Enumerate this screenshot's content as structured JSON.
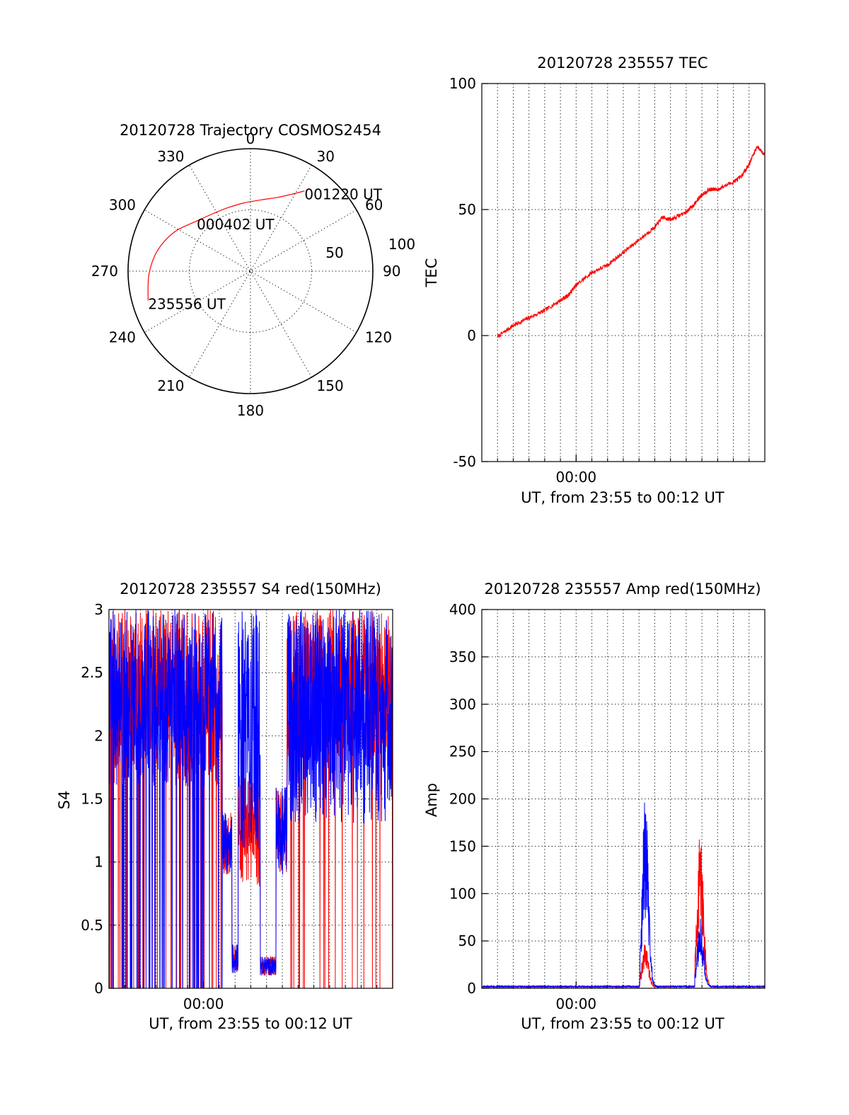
{
  "chart_data": [
    {
      "type": "polar",
      "title": "20120728 Trajectory COSMOS2454",
      "azimuth_labels": [
        "0",
        "30",
        "60",
        "90",
        "120",
        "150",
        "180",
        "210",
        "240",
        "270",
        "300",
        "330"
      ],
      "azimuth_degrees": [
        0,
        30,
        60,
        90,
        120,
        150,
        180,
        210,
        240,
        270,
        300,
        330
      ],
      "radius_labels": [
        "50",
        "100"
      ],
      "radius_values": [
        50,
        100
      ],
      "radius_max": 100,
      "series": [
        {
          "color": "#ff0000",
          "points": [
            {
              "az": 254,
              "r": 87,
              "label": "235556 UT"
            },
            {
              "az": 268,
              "r": 83
            },
            {
              "az": 282,
              "r": 78
            },
            {
              "az": 297,
              "r": 70
            },
            {
              "az": 313,
              "r": 60,
              "label": "000402 UT"
            },
            {
              "az": 327,
              "r": 56
            },
            {
              "az": 340,
              "r": 55
            },
            {
              "az": 355,
              "r": 56
            },
            {
              "az": 9,
              "r": 59
            },
            {
              "az": 20,
              "r": 64
            },
            {
              "az": 28,
              "r": 71
            },
            {
              "az": 34,
              "r": 79,
              "label": "001220 UT"
            }
          ]
        }
      ]
    },
    {
      "type": "line",
      "title": "20120728 235557 TEC",
      "xlabel": "UT, from 23:55 to 00:12 UT",
      "ylabel": "TEC",
      "xlim": [
        "23:54:00",
        "00:12:00"
      ],
      "x_ticks": [
        {
          "at": "00:00:00",
          "label": "00:00"
        }
      ],
      "ylim": [
        -50,
        100
      ],
      "y_ticks": [
        "-50",
        "0",
        "50",
        "100"
      ],
      "grid": true,
      "series": [
        {
          "color": "#ff0000",
          "x": [
            "23:55:00",
            "23:56:00",
            "23:57:00",
            "23:58:00",
            "23:59:00",
            "23:59:30",
            "00:00:00",
            "00:01:00",
            "00:02:00",
            "00:03:00",
            "00:04:00",
            "00:05:00",
            "00:05:30",
            "00:06:00",
            "00:07:00",
            "00:07:30",
            "00:08:00",
            "00:08:30",
            "00:09:00",
            "00:10:00",
            "00:10:30",
            "00:11:00",
            "00:11:30",
            "00:12:00"
          ],
          "y": [
            -0.5,
            4,
            7,
            10,
            14,
            16,
            20,
            25,
            28,
            33,
            38,
            43,
            47,
            46,
            49,
            52,
            56,
            58,
            58,
            61,
            63,
            68,
            75,
            72
          ]
        }
      ]
    },
    {
      "type": "line",
      "title": "20120728 235557 S4 red(150MHz)",
      "xlabel": "UT, from 23:55 to 00:12 UT",
      "ylabel": "S4",
      "xlim": [
        "23:54:00",
        "00:12:00"
      ],
      "x_ticks": [
        {
          "at": "00:00:00",
          "label": "00:00"
        }
      ],
      "ylim": [
        0,
        3
      ],
      "y_ticks": [
        "0",
        "0.5",
        "1",
        "1.5",
        "2",
        "2.5",
        "3"
      ],
      "grid": true,
      "series": [
        {
          "color": "#ff0000",
          "x_range": [
            "23:54:00",
            "00:12:00"
          ],
          "y_range": [
            0.1,
            3.0
          ]
        },
        {
          "color": "#0000ff",
          "x_range": [
            "23:54:00",
            "00:12:00"
          ],
          "y_range": [
            0.1,
            3.0
          ]
        }
      ]
    },
    {
      "type": "line",
      "title": "20120728 235557 Amp red(150MHz)",
      "xlabel": "UT, from 23:55 to 00:12 UT",
      "ylabel": "Amp",
      "xlim": [
        "23:54:00",
        "00:12:00"
      ],
      "x_ticks": [
        {
          "at": "00:00:00",
          "label": "00:00"
        }
      ],
      "ylim": [
        0,
        400
      ],
      "y_ticks": [
        "0",
        "50",
        "100",
        "150",
        "200",
        "250",
        "300",
        "350",
        "400"
      ],
      "grid": true,
      "series": [
        {
          "color": "#ff0000",
          "peaks": [
            {
              "x": "00:04:30",
              "y": 50
            },
            {
              "x": "00:08:00",
              "y": 165
            }
          ]
        },
        {
          "color": "#0000ff",
          "peaks": [
            {
              "x": "00:04:30",
              "y": 205
            },
            {
              "x": "00:08:00",
              "y": 72
            }
          ]
        }
      ]
    }
  ]
}
